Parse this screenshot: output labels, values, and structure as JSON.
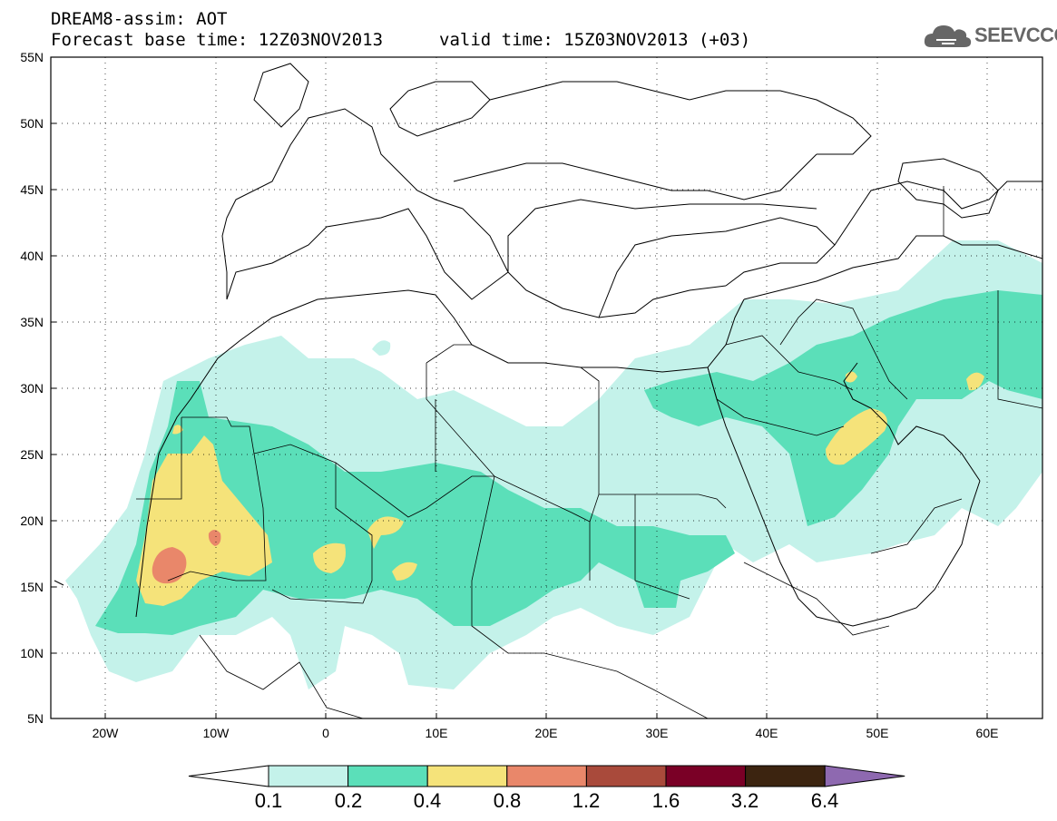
{
  "header": {
    "title": "DREAM8-assim: AOT",
    "base_time": "Forecast base time: 12Z03NOV2013",
    "valid_time": "valid time: 15Z03NOV2013 (+03)"
  },
  "logo": {
    "text": "SEEVCCC",
    "icon": "cloud-icon"
  },
  "map": {
    "lat_labels": [
      "55N",
      "50N",
      "45N",
      "40N",
      "35N",
      "30N",
      "25N",
      "20N",
      "15N",
      "10N",
      "5N"
    ],
    "lon_labels": [
      "20W",
      "10W",
      "0",
      "10E",
      "20E",
      "30E",
      "40E",
      "50E",
      "60E"
    ],
    "grid": "dotted",
    "colors": {
      "c1": "#c4f2ea",
      "c2": "#5bdfb9",
      "c3": "#f5e37a",
      "c4": "#e9876a"
    }
  },
  "colorbar": {
    "labels": [
      "0.1",
      "0.2",
      "0.4",
      "0.8",
      "1.2",
      "1.6",
      "3.2",
      "6.4"
    ],
    "colors": [
      "#ffffff",
      "#c4f2ea",
      "#5bdfb9",
      "#f5e37a",
      "#e9876a",
      "#a94a3b",
      "#7a0026",
      "#3c2410",
      "#8e69b0"
    ]
  }
}
